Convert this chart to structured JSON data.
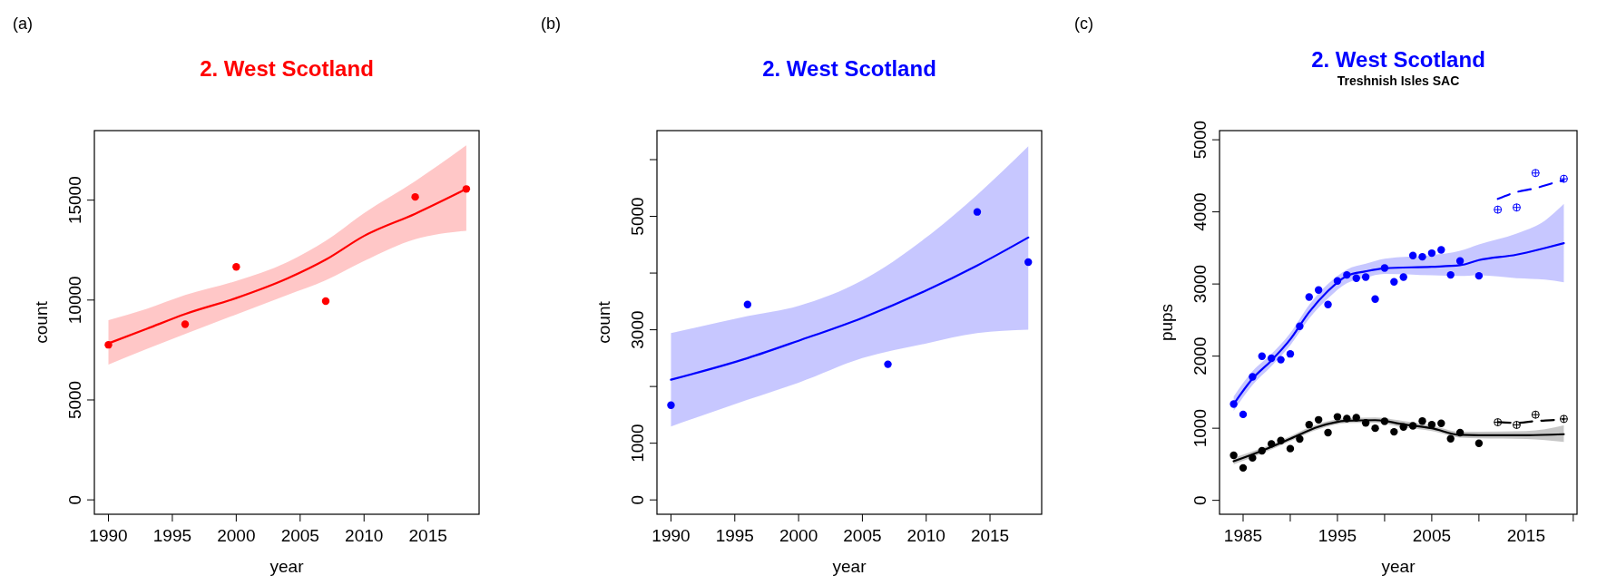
{
  "chart_data": [
    {
      "type": "line",
      "title": "2. West Scotland",
      "xlabel": "year",
      "ylabel": "count",
      "annotations": [
        "(a)"
      ],
      "xlim": [
        1988.9,
        2019.0
      ],
      "ylim": [
        -720,
        18480
      ],
      "xticks": [
        1990,
        1995,
        2000,
        2005,
        2010,
        2015
      ],
      "yticks": [
        0,
        5000,
        10000,
        15000
      ],
      "grid": false,
      "series": [
        {
          "type": "line",
          "color": "#ff0000",
          "x": [
            1990,
            1993,
            1996,
            2000,
            2004,
            2007,
            2010,
            2014,
            2018
          ],
          "values": [
            7830,
            8560,
            9300,
            10100,
            11080,
            12020,
            13210,
            14320,
            15560
          ],
          "lower": [
            6770,
            7550,
            8300,
            9280,
            10250,
            10990,
            11950,
            13040,
            13470
          ],
          "upper": [
            8990,
            9560,
            10250,
            10960,
            11900,
            12960,
            14350,
            15950,
            17740
          ]
        },
        {
          "type": "scatter",
          "color": "#ff0000",
          "marker": "circle",
          "x": [
            1990,
            1996,
            2000,
            2007,
            2014,
            2018
          ],
          "values": [
            7760,
            8790,
            11660,
            9950,
            15160,
            15560
          ]
        }
      ]
    },
    {
      "type": "line",
      "title": "2. West Scotland",
      "xlabel": "year",
      "ylabel": "count",
      "annotations": [
        "(b)"
      ],
      "xlim": [
        1988.9,
        2019.05
      ],
      "ylim": [
        -253,
        6512
      ],
      "xticks": [
        1990,
        1995,
        2000,
        2005,
        2010,
        2015
      ],
      "yticks": [
        0,
        1000,
        {
          "value": 2000,
          "label": null
        },
        3000,
        {
          "value": 4000,
          "label": null
        },
        5000,
        {
          "value": 6000,
          "label": null
        }
      ],
      "grid": false,
      "series": [
        {
          "type": "line",
          "color": "#0000ff",
          "x": [
            1990,
            1996,
            2000,
            2005,
            2010,
            2014,
            2018
          ],
          "values": [
            2120,
            2500,
            2807,
            3211,
            3693,
            4133,
            4627
          ],
          "lower": [
            1295,
            1765,
            2066,
            2500,
            2759,
            2940,
            3000
          ],
          "upper": [
            2940,
            3241,
            3422,
            3873,
            4627,
            5380,
            6235
          ]
        },
        {
          "type": "scatter",
          "color": "#0000ff",
          "marker": "circle",
          "x": [
            1990,
            1996,
            2007,
            2014,
            2018
          ],
          "values": [
            1669,
            3446,
            2392,
            5078,
            4193
          ]
        }
      ]
    },
    {
      "type": "line",
      "title": "2. West Scotland",
      "subtitle": "Treshnish Isles SAC",
      "xlabel": "year",
      "ylabel": "pups",
      "annotations": [
        "(c)"
      ],
      "xlim": [
        1982.5,
        2020.4
      ],
      "ylim": [
        -193,
        5127
      ],
      "xticks": [
        1985,
        {
          "value": 1990,
          "label": null
        },
        1995,
        {
          "value": 2000,
          "label": null
        },
        2005,
        {
          "value": 2010,
          "label": null
        },
        2015,
        {
          "value": 2020,
          "label": null
        }
      ],
      "yticks": [
        0,
        1000,
        2000,
        3000,
        4000,
        5000
      ],
      "grid": false,
      "series": [
        {
          "type": "line",
          "color": "#0000ff",
          "x": [
            1984,
            1986,
            1988,
            1990,
            1992,
            1994,
            1996,
            1998,
            2000,
            2005,
            2008,
            2010,
            2014,
            2017,
            2019
          ],
          "values": [
            1335,
            1688,
            1940,
            2233,
            2610,
            2904,
            3113,
            3176,
            3218,
            3239,
            3260,
            3331,
            3407,
            3499,
            3566
          ],
          "lower": [
            1240,
            1600,
            1860,
            2150,
            2520,
            2800,
            3010,
            3090,
            3140,
            3120,
            3110,
            3120,
            3080,
            3060,
            3025
          ],
          "upper": [
            1440,
            1790,
            2030,
            2320,
            2710,
            3000,
            3200,
            3280,
            3350,
            3400,
            3460,
            3550,
            3700,
            3880,
            4110
          ]
        },
        {
          "type": "scatter",
          "color": "#0000ff",
          "marker": "circle",
          "x": [
            1984,
            1985,
            1986,
            1987,
            1988,
            1989,
            1990,
            1991,
            1992,
            1993,
            1994,
            1995,
            1996,
            1997,
            1998,
            1999,
            2000,
            2001,
            2002,
            2003,
            2004,
            2005,
            2006,
            2007,
            2008,
            2010
          ],
          "values": [
            1335,
            1192,
            1713,
            1998,
            1970,
            1950,
            2031,
            2413,
            2820,
            2916,
            2715,
            3042,
            3126,
            3080,
            3096,
            2790,
            3222,
            3029,
            3096,
            3394,
            3377,
            3428,
            3474,
            3126,
            3319,
            3113
          ]
        },
        {
          "type": "line",
          "color": "#0000ff",
          "line_style": "dashed",
          "x": [
            2012,
            2014,
            2016,
            2018,
            2019
          ],
          "values": [
            4180,
            4275,
            4329,
            4405,
            4440
          ]
        },
        {
          "type": "scatter",
          "color": "#0000ff",
          "x": [
            2012,
            2014,
            2016,
            2019
          ],
          "values": [
            4031,
            4061,
            4539,
            4459
          ]
        },
        {
          "type": "line",
          "color": "#000000",
          "x": [
            1984,
            1987,
            1990,
            1993,
            1996,
            1999,
            2002,
            2005,
            2008,
            2010,
            2015,
            2019
          ],
          "values": [
            542,
            688,
            854,
            1021,
            1104,
            1112,
            1054,
            1000,
            908,
            904,
            904,
            917
          ],
          "lower": [
            500,
            650,
            820,
            985,
            1070,
            1075,
            1010,
            960,
            870,
            860,
            850,
            810
          ],
          "upper": [
            590,
            725,
            890,
            1060,
            1140,
            1150,
            1100,
            1040,
            950,
            950,
            960,
            1040
          ]
        },
        {
          "type": "scatter",
          "color": "#000000",
          "marker": "circle",
          "x": [
            1984,
            1985,
            1986,
            1987,
            1988,
            1989,
            1990,
            1991,
            1992,
            1993,
            1994,
            1995,
            1996,
            1997,
            1998,
            1999,
            2000,
            2001,
            2002,
            2003,
            2004,
            2005,
            2006,
            2007,
            2008,
            2010
          ],
          "values": [
            625,
            450,
            588,
            688,
            783,
            829,
            717,
            850,
            1050,
            1117,
            938,
            1158,
            1133,
            1146,
            1075,
            1000,
            1096,
            950,
            1017,
            1033,
            1100,
            1050,
            1067,
            854,
            938,
            792
          ]
        },
        {
          "type": "line",
          "color": "#000000",
          "line_style": "dashed",
          "x": [
            2012,
            2014,
            2016,
            2018,
            2019
          ],
          "values": [
            1085,
            1075,
            1100,
            1115,
            1125
          ]
        },
        {
          "type": "scatter",
          "color": "#000000",
          "x": [
            2012,
            2014,
            2016,
            2019
          ],
          "values": [
            1083,
            1046,
            1188,
            1129
          ]
        }
      ]
    }
  ]
}
